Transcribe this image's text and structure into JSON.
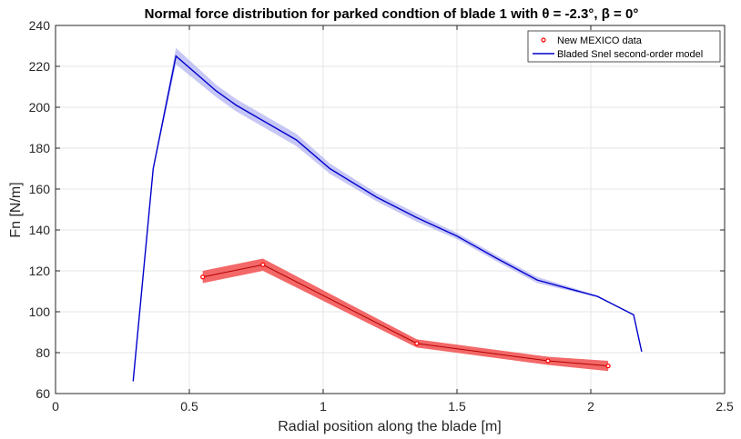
{
  "chart_data": {
    "type": "line",
    "title": "Normal force distribution for parked condtion of blade 1 with θ = -2.3°, β = 0°",
    "xlabel": "Radial position along the blade [m]",
    "ylabel": "Fn [N/m]",
    "xlim": [
      0,
      2.5
    ],
    "ylim": [
      60,
      240
    ],
    "xticks": [
      0,
      0.5,
      1,
      1.5,
      2,
      2.5
    ],
    "xtick_labels": [
      "0",
      "0.5",
      "1",
      "1.5",
      "2",
      "2.5"
    ],
    "yticks": [
      60,
      80,
      100,
      120,
      140,
      160,
      180,
      200,
      220,
      240
    ],
    "ytick_labels": [
      "60",
      "80",
      "100",
      "120",
      "140",
      "160",
      "180",
      "200",
      "220",
      "240"
    ],
    "grid": true,
    "legend_position": "top-right",
    "series": [
      {
        "name": "New MEXICO data",
        "color": "#ff0000",
        "band_color": "#f26060",
        "marker": "circle",
        "x": [
          0.55,
          0.775,
          1.35,
          1.84,
          2.065
        ],
        "y": [
          117,
          123,
          84.5,
          76,
          73.5
        ],
        "band_halfwidth": [
          3,
          3,
          2,
          2,
          2.5
        ]
      },
      {
        "name": "Bladed Snel second-order model",
        "color": "#0000cc",
        "band_color": "#9999ee",
        "marker": "none",
        "x": [
          0.29,
          0.365,
          0.45,
          0.6,
          0.675,
          0.9,
          1.025,
          1.2,
          1.35,
          1.5,
          1.65,
          1.8,
          2.025,
          2.16,
          2.19
        ],
        "y": [
          66,
          170,
          225,
          208,
          201,
          184,
          170,
          156,
          146,
          137,
          126,
          115.5,
          107.5,
          98.5,
          80.5
        ],
        "band_halfwidth": [
          0,
          1,
          4,
          3,
          3,
          3,
          2.5,
          2,
          2,
          1.5,
          1.5,
          1.5,
          0.5,
          0,
          0
        ]
      }
    ]
  }
}
